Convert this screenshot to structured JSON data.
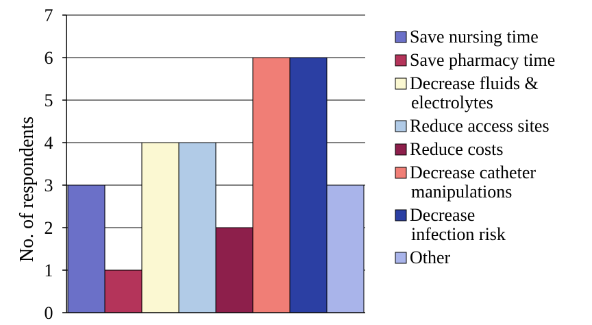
{
  "chart_data": {
    "type": "bar",
    "title": "",
    "xlabel": "",
    "ylabel": "No. of respondents",
    "ylim": [
      0,
      7
    ],
    "yticks": [
      0,
      1,
      2,
      3,
      4,
      5,
      6,
      7
    ],
    "grid": true,
    "legend_position": "right",
    "series": [
      {
        "name": "Save nursing time",
        "label_lines": [
          "Save nursing time"
        ],
        "value": 3,
        "color": "#6b70c8"
      },
      {
        "name": "Save pharmacy time",
        "label_lines": [
          "Save pharmacy time"
        ],
        "value": 1,
        "color": "#b4345a"
      },
      {
        "name": "Decrease fluids & electrolytes",
        "label_lines": [
          "Decrease fluids &",
          "electrolytes"
        ],
        "value": 4,
        "color": "#fbf8d2"
      },
      {
        "name": "Reduce access sites",
        "label_lines": [
          "Reduce access sites"
        ],
        "value": 4,
        "color": "#b1cbe7"
      },
      {
        "name": "Reduce costs",
        "label_lines": [
          "Reduce costs"
        ],
        "value": 2,
        "color": "#8d1f4b"
      },
      {
        "name": "Decrease catheter manipulations",
        "label_lines": [
          "Decrease catheter",
          "manipulations"
        ],
        "value": 6,
        "color": "#f07e76"
      },
      {
        "name": "Decrease infection risk",
        "label_lines": [
          "Decrease",
          "infection risk"
        ],
        "value": 6,
        "color": "#2b3fa3"
      },
      {
        "name": "Other",
        "label_lines": [
          "Other"
        ],
        "value": 3,
        "color": "#a9b4ea"
      }
    ]
  }
}
